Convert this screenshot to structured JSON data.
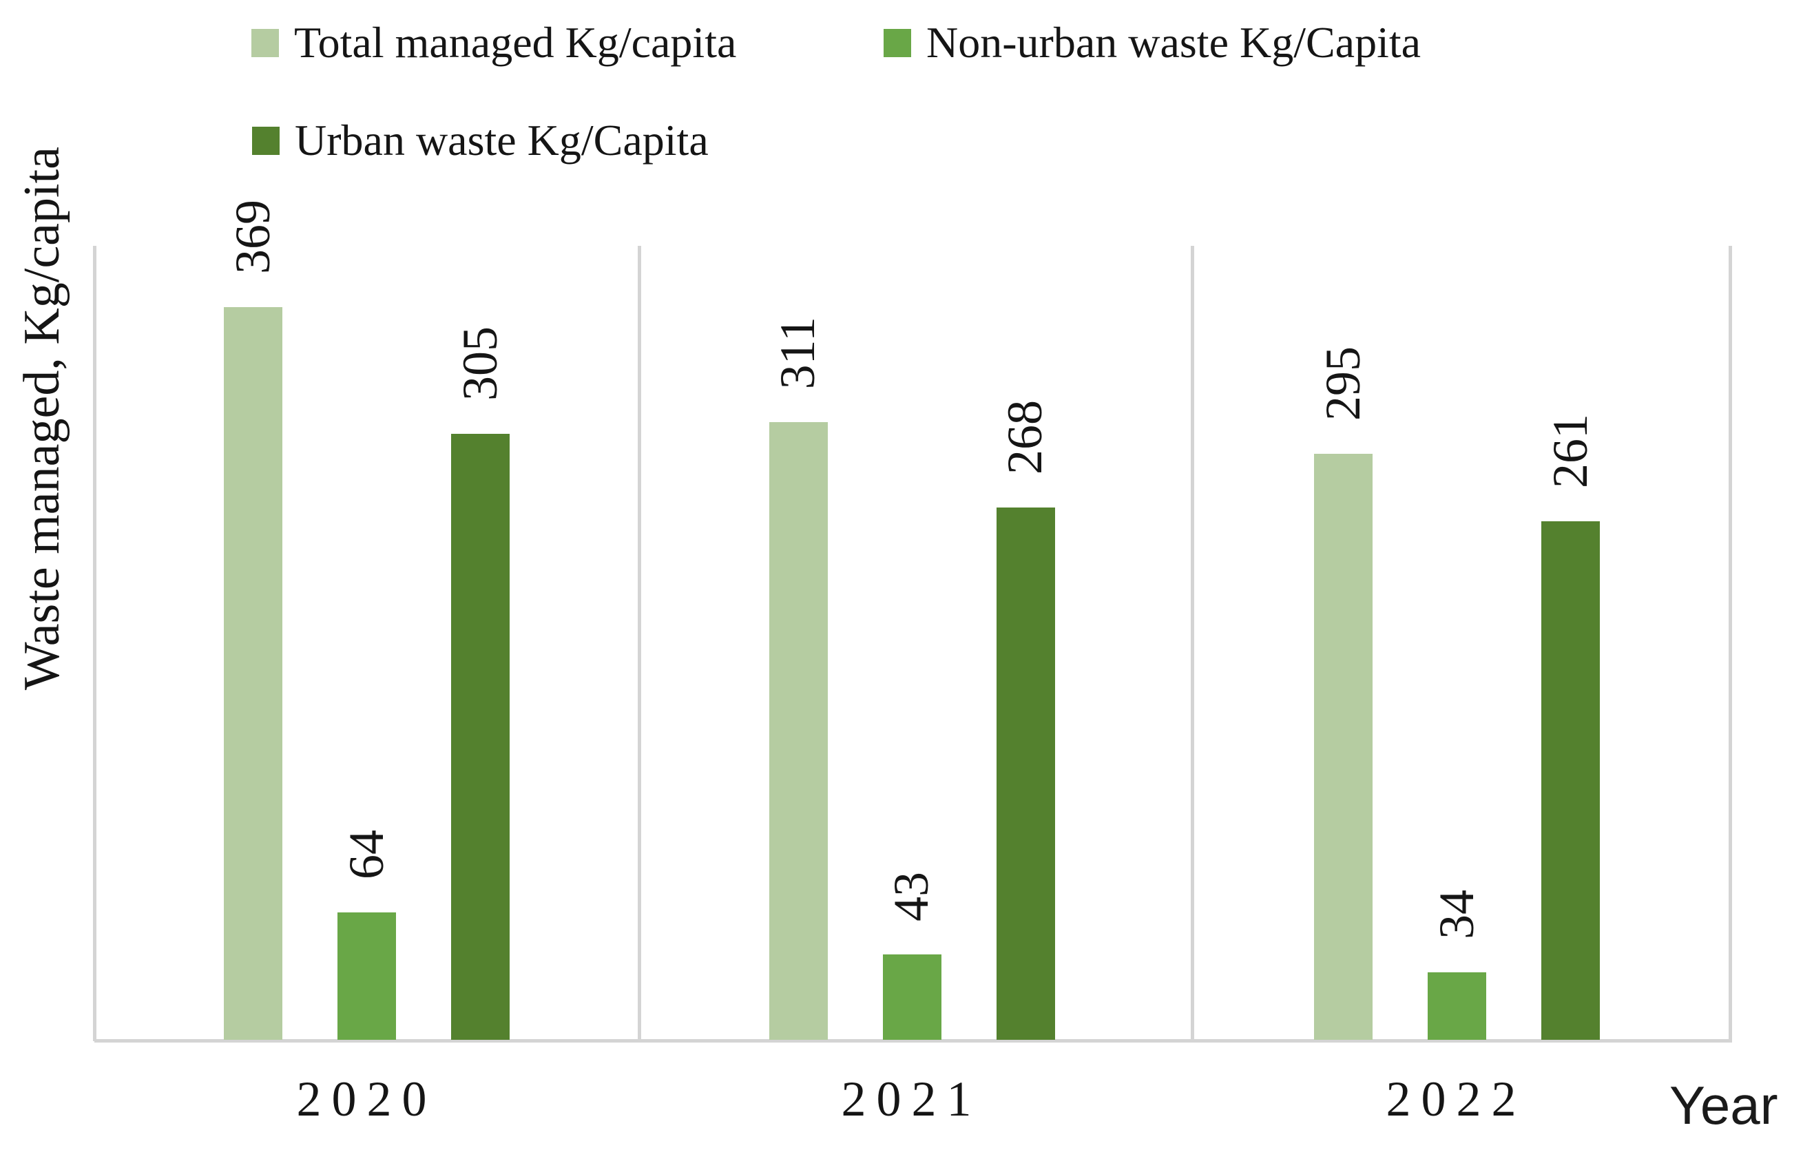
{
  "chart_data": {
    "type": "bar",
    "title": "",
    "categories": [
      "2020",
      "2021",
      "2022"
    ],
    "series": [
      {
        "name": "Total managed Kg/capita",
        "color": "#b5cca1",
        "values": [
          369,
          311,
          295
        ]
      },
      {
        "name": "Non-urban waste Kg/Capita",
        "color": "#69a747",
        "values": [
          64,
          43,
          34
        ]
      },
      {
        "name": "Urban waste Kg/Capita",
        "color": "#54812e",
        "values": [
          305,
          268,
          261
        ]
      }
    ],
    "xlabel": "Year",
    "ylabel": "Waste managed, Kg/capita",
    "ylim": [
      0,
      400
    ],
    "grid": false,
    "legend_position": "top-left-two-rows",
    "data_labels": "outside-end-rotated-90",
    "axis_color": "#d4d4d4",
    "text_color": "#151515",
    "background_color": "#ffffff"
  }
}
